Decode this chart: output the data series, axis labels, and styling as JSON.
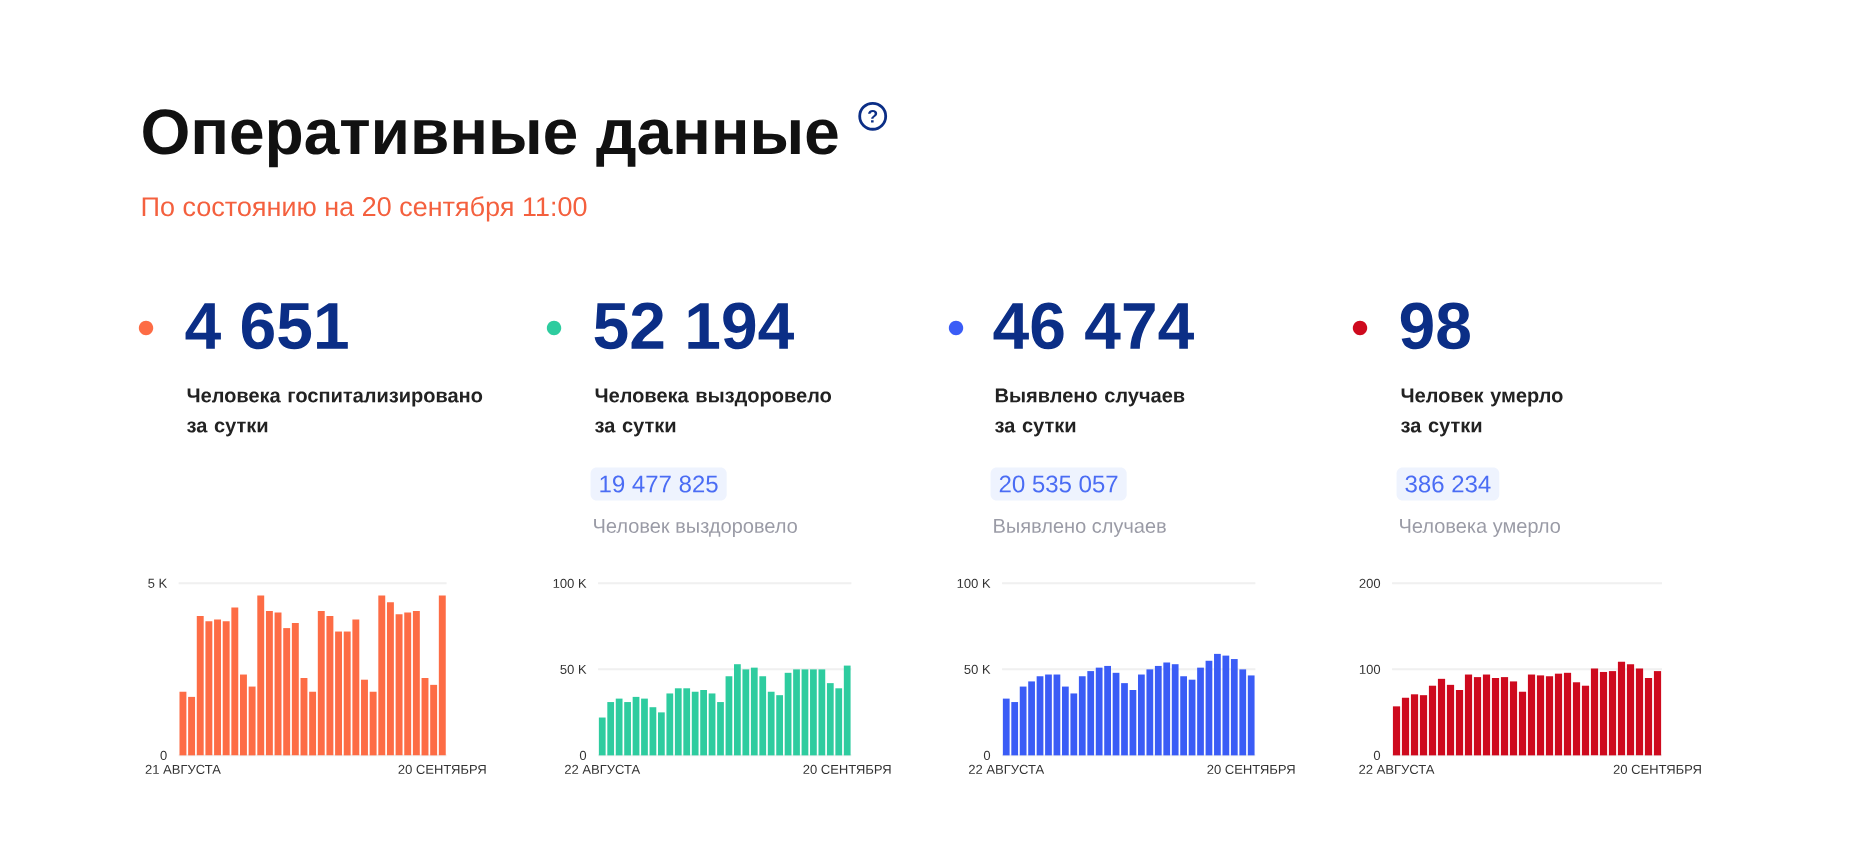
{
  "chart_data": [
    {
      "type": "other",
      "title": "Оперативные данные",
      "subtitle": "По состоянию на 20 сентября 11:00",
      "annotations": [
        "?"
      ]
    },
    {
      "type": "bar",
      "title": "4 651",
      "subtitle": "Человека госпитализировано за сутки",
      "categories": [
        "21 АВГУСТА",
        null,
        null,
        null,
        null,
        null,
        null,
        null,
        null,
        null,
        null,
        null,
        null,
        null,
        null,
        null,
        null,
        null,
        null,
        null,
        null,
        null,
        null,
        null,
        null,
        null,
        null,
        null,
        null,
        null,
        "20 СЕНТЯБРЯ"
      ],
      "series": [
        {
          "color": "#fd6c45",
          "values": [
            1850,
            1700,
            4050,
            3900,
            3950,
            3900,
            4300,
            2350,
            2000,
            4650,
            4200,
            4150,
            3700,
            3850,
            2250,
            1850,
            4200,
            4050,
            3600,
            3600,
            3950,
            2200,
            1850,
            4650,
            4450,
            4100,
            4150,
            4200,
            2250,
            2050,
            4651
          ]
        }
      ],
      "ylim": [
        0,
        5000
      ],
      "yticks": [
        0,
        {
          "value": 5000,
          "label": "5 K"
        }
      ],
      "grid": "y"
    },
    {
      "type": "bar",
      "title": "52 194",
      "subtitle": "Человека выздоровело за сутки",
      "annotations": [
        "19 477 825",
        "Человек выздоровело"
      ],
      "categories": [
        "22 АВГУСТА",
        null,
        null,
        null,
        null,
        null,
        null,
        null,
        null,
        null,
        null,
        null,
        null,
        null,
        null,
        null,
        null,
        null,
        null,
        null,
        null,
        null,
        null,
        null,
        null,
        null,
        null,
        null,
        null,
        "20 СЕНТЯБРЯ"
      ],
      "series": [
        {
          "color": "#2ecc9f",
          "values": [
            22000,
            31000,
            33000,
            31000,
            34000,
            33000,
            28000,
            25000,
            36000,
            39000,
            39000,
            37000,
            38000,
            36000,
            31000,
            46000,
            53000,
            50000,
            51000,
            46000,
            37000,
            35000,
            48000,
            50000,
            50000,
            50000,
            50000,
            42000,
            39000,
            52194
          ]
        }
      ],
      "ylim": [
        0,
        100000
      ],
      "yticks": [
        0,
        {
          "value": 50000,
          "label": "50 K"
        },
        {
          "value": 100000,
          "label": "100 K"
        }
      ],
      "grid": "y"
    },
    {
      "type": "bar",
      "title": "46 474",
      "subtitle": "Выявлено случаев за сутки",
      "annotations": [
        "20 535 057",
        "Выявлено случаев"
      ],
      "categories": [
        "22 АВГУСТА",
        null,
        null,
        null,
        null,
        null,
        null,
        null,
        null,
        null,
        null,
        null,
        null,
        null,
        null,
        null,
        null,
        null,
        null,
        null,
        null,
        null,
        null,
        null,
        null,
        null,
        null,
        null,
        null,
        "20 СЕНТЯБРЯ"
      ],
      "series": [
        {
          "color": "#3a5cf6",
          "values": [
            33000,
            31000,
            40000,
            43000,
            46000,
            47000,
            47000,
            40000,
            36000,
            46000,
            49000,
            51000,
            52000,
            48000,
            42000,
            38000,
            47000,
            50000,
            52000,
            54000,
            53000,
            46000,
            44000,
            51000,
            55000,
            59000,
            58000,
            56000,
            50000,
            46474
          ]
        }
      ],
      "ylim": [
        0,
        100000
      ],
      "yticks": [
        0,
        {
          "value": 50000,
          "label": "50 K"
        },
        {
          "value": 100000,
          "label": "100 K"
        }
      ],
      "grid": "y"
    },
    {
      "type": "bar",
      "title": "98",
      "subtitle": "Человек умерло за сутки",
      "annotations": [
        "386 234",
        "Человека умерло"
      ],
      "categories": [
        "22 АВГУСТА",
        null,
        null,
        null,
        null,
        null,
        null,
        null,
        null,
        null,
        null,
        null,
        null,
        null,
        null,
        null,
        null,
        null,
        null,
        null,
        null,
        null,
        null,
        null,
        null,
        null,
        null,
        null,
        null,
        "20 СЕНТЯБРЯ"
      ],
      "series": [
        {
          "color": "#ce0a1e",
          "values": [
            57,
            67,
            71,
            70,
            81,
            89,
            82,
            76,
            94,
            91,
            94,
            90,
            91,
            86,
            74,
            94,
            93,
            92,
            95,
            96,
            85,
            81,
            101,
            97,
            98,
            109,
            106,
            101,
            90,
            98
          ]
        }
      ],
      "ylim": [
        0,
        200
      ],
      "yticks": [
        0,
        100,
        200
      ],
      "grid": "y"
    }
  ]
}
